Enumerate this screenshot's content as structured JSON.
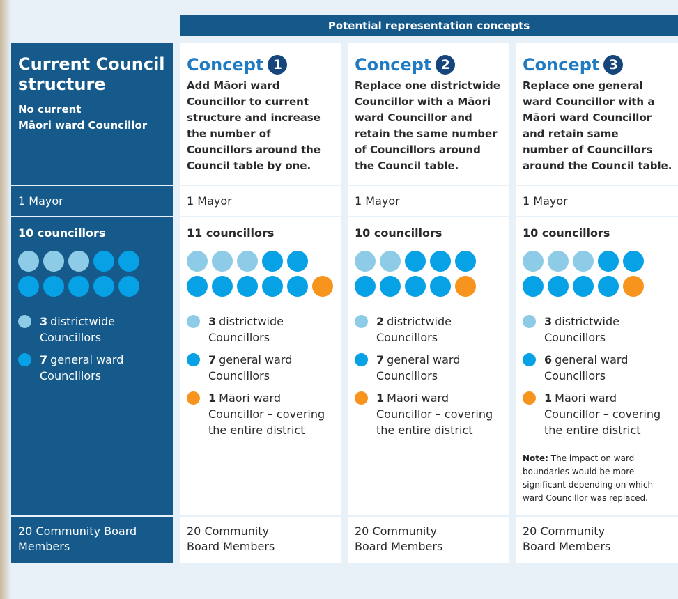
{
  "header": "Potential representation concepts",
  "current": {
    "title_lines": [
      "Current Council",
      "structure"
    ],
    "subtitle_lines": [
      "No current",
      "Māori ward Councillor"
    ],
    "mayor": "1 Mayor",
    "councillors": "10 councillors",
    "legend": [
      {
        "count": 3,
        "lines": [
          "districtwide",
          "Councillors"
        ],
        "color": "#8ecbe6"
      },
      {
        "count": 7,
        "lines": [
          "general ward",
          "Councillors"
        ],
        "color": "#07a1e6"
      }
    ],
    "community_lines": [
      "20 Community Board",
      "Members"
    ]
  },
  "concepts": [
    {
      "label": "Concept",
      "number": "1",
      "description_lines": [
        "Add Māori ward",
        "Councillor to current",
        "structure and increase",
        "the number of",
        "Councillors around the",
        "Council table by one."
      ],
      "mayor": "1 Mayor",
      "councillors": "11 councillors",
      "legend": [
        {
          "count": 3,
          "lines": [
            "districtwide",
            "Councillors"
          ],
          "color": "#8ecbe6"
        },
        {
          "count": 7,
          "lines": [
            "general ward",
            "Councillors"
          ],
          "color": "#07a1e6"
        },
        {
          "count": 1,
          "lines": [
            "Māori ward",
            "Councillor – covering",
            "the entire district"
          ],
          "color": "#f7941d"
        }
      ],
      "community_lines": [
        "20 Community",
        "Board Members"
      ]
    },
    {
      "label": "Concept",
      "number": "2",
      "description_lines": [
        "Replace one districtwide",
        "Councillor with a Māori",
        "ward Councillor and",
        "retain the same number",
        "of Councillors around",
        "the Council table."
      ],
      "mayor": "1 Mayor",
      "councillors": "10 councillors",
      "legend": [
        {
          "count": 2,
          "lines": [
            "districtwide",
            "Councillors"
          ],
          "color": "#8ecbe6"
        },
        {
          "count": 7,
          "lines": [
            "general ward",
            "Councillors"
          ],
          "color": "#07a1e6"
        },
        {
          "count": 1,
          "lines": [
            "Māori ward",
            "Councillor – covering",
            "the entire district"
          ],
          "color": "#f7941d"
        }
      ],
      "community_lines": [
        "20 Community",
        "Board Members"
      ]
    },
    {
      "label": "Concept",
      "number": "3",
      "description_lines": [
        "Replace one general",
        "ward Councillor with a",
        "Māori ward Councillor",
        "and retain same",
        "number of Councillors",
        "around the Council table."
      ],
      "mayor": "1 Mayor",
      "councillors": "10 councillors",
      "legend": [
        {
          "count": 3,
          "lines": [
            "districtwide",
            "Councillors"
          ],
          "color": "#8ecbe6"
        },
        {
          "count": 6,
          "lines": [
            "general ward",
            "Councillors"
          ],
          "color": "#07a1e6"
        },
        {
          "count": 1,
          "lines": [
            "Māori ward",
            "Councillor – covering",
            "the entire district"
          ],
          "color": "#f7941d"
        }
      ],
      "note_label": "Note:",
      "note_lines": [
        " The impact on ward",
        "boundaries would be more",
        "significant depending on which",
        "ward Councillor was replaced."
      ],
      "community_lines": [
        "20 Community",
        "Board Members"
      ]
    }
  ]
}
